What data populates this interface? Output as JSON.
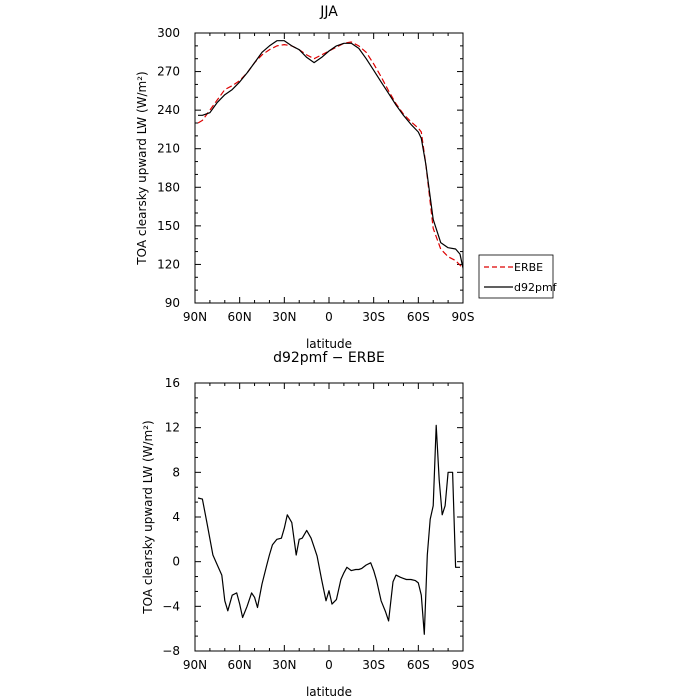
{
  "chart_data": [
    {
      "type": "line",
      "title": "JJA",
      "xlabel": "latitude",
      "ylabel": "TOA clearsky upward LW (W/m²)",
      "xlim": [
        90,
        -90
      ],
      "ylim": [
        90,
        300
      ],
      "x_ticks": [
        90,
        60,
        30,
        0,
        -30,
        -60,
        -90
      ],
      "x_tick_labels": [
        "90N",
        "60N",
        "30N",
        "0",
        "30S",
        "60S",
        "90S"
      ],
      "y_ticks": [
        90,
        120,
        150,
        180,
        210,
        240,
        270,
        300
      ],
      "y_tick_labels": [
        "90",
        "120",
        "150",
        "180",
        "210",
        "240",
        "270",
        "300"
      ],
      "legend_position": "right",
      "series": [
        {
          "name": "ERBE",
          "style": "dashed",
          "color": "#dd0000",
          "x": [
            88,
            85,
            80,
            75,
            70,
            65,
            60,
            55,
            50,
            45,
            40,
            35,
            30,
            25,
            20,
            15,
            10,
            5,
            0,
            -5,
            -10,
            -15,
            -20,
            -25,
            -30,
            -35,
            -40,
            -45,
            -50,
            -55,
            -60,
            -62,
            -65,
            -70,
            -75,
            -80,
            -85,
            -90
          ],
          "values": [
            230,
            232,
            240,
            248,
            256,
            259,
            263,
            269,
            277,
            283,
            287,
            290,
            291,
            290,
            287,
            283,
            280,
            283,
            286,
            289,
            292,
            293,
            290,
            285,
            276,
            266,
            255,
            245,
            237,
            231,
            226,
            223,
            198,
            148,
            132,
            126,
            123,
            117
          ]
        },
        {
          "name": "d92pmf",
          "style": "solid",
          "color": "#000000",
          "x": [
            88,
            85,
            80,
            75,
            70,
            65,
            60,
            55,
            50,
            45,
            40,
            35,
            30,
            25,
            20,
            15,
            10,
            5,
            0,
            -5,
            -10,
            -15,
            -20,
            -25,
            -30,
            -35,
            -40,
            -45,
            -50,
            -55,
            -60,
            -62,
            -65,
            -70,
            -75,
            -80,
            -85,
            -88,
            -90
          ],
          "values": [
            236,
            236,
            238,
            246,
            252,
            256,
            262,
            269,
            277,
            285,
            290,
            294,
            294,
            290,
            287,
            281,
            277,
            281,
            286,
            290,
            292,
            292,
            288,
            280,
            271,
            262,
            253,
            244,
            236,
            229,
            223,
            218,
            198,
            155,
            137,
            133,
            132,
            128,
            117
          ]
        }
      ]
    },
    {
      "type": "line",
      "title": "d92pmf − ERBE",
      "xlabel": "latitude",
      "ylabel": "TOA clearsky upward LW (W/m²)",
      "xlim": [
        90,
        -90
      ],
      "ylim": [
        -8,
        16
      ],
      "x_ticks": [
        90,
        60,
        30,
        0,
        -30,
        -60,
        -90
      ],
      "x_tick_labels": [
        "90N",
        "60N",
        "30N",
        "0",
        "30S",
        "60S",
        "90S"
      ],
      "y_ticks": [
        -8,
        -4,
        0,
        4,
        8,
        12,
        16
      ],
      "y_tick_labels": [
        "−8",
        "−4",
        "0",
        "4",
        "8",
        "12",
        "16"
      ],
      "series": [
        {
          "style": "solid",
          "color": "#000000",
          "x": [
            88,
            85,
            82,
            78,
            75,
            72,
            70,
            68,
            65,
            62,
            60,
            58,
            55,
            52,
            50,
            48,
            45,
            42,
            40,
            38,
            35,
            32,
            30,
            28,
            25,
            22,
            20,
            18,
            15,
            12,
            10,
            8,
            5,
            2,
            0,
            -2,
            -5,
            -8,
            -10,
            -12,
            -15,
            -18,
            -20,
            -22,
            -25,
            -28,
            -30,
            -32,
            -35,
            -38,
            -40,
            -43,
            -45,
            -48,
            -50,
            -52,
            -55,
            -58,
            -60,
            -62,
            -64,
            -66,
            -68,
            -70,
            -72,
            -74,
            -76,
            -78,
            -80,
            -83,
            -85,
            -86,
            -88
          ],
          "values": [
            5.7,
            5.6,
            3.5,
            0.6,
            -0.3,
            -1.2,
            -3.5,
            -4.4,
            -3.0,
            -2.8,
            -3.8,
            -5.0,
            -4.0,
            -2.8,
            -3.2,
            -4.1,
            -2.0,
            -0.4,
            0.6,
            1.5,
            2.0,
            2.1,
            3.0,
            4.2,
            3.5,
            0.6,
            2.0,
            2.1,
            2.8,
            2.1,
            1.3,
            0.5,
            -1.6,
            -3.5,
            -2.6,
            -3.8,
            -3.4,
            -1.6,
            -1.0,
            -0.5,
            -0.8,
            -0.7,
            -0.7,
            -0.6,
            -0.3,
            -0.1,
            -0.8,
            -1.7,
            -3.5,
            -4.5,
            -5.3,
            -1.8,
            -1.2,
            -1.4,
            -1.5,
            -1.6,
            -1.6,
            -1.7,
            -1.9,
            -3.0,
            -6.5,
            0.6,
            3.8,
            5.0,
            12.2,
            7.3,
            4.2,
            5.0,
            8.0,
            8.0,
            -0.5,
            -0.5,
            -0.5
          ]
        }
      ]
    }
  ]
}
